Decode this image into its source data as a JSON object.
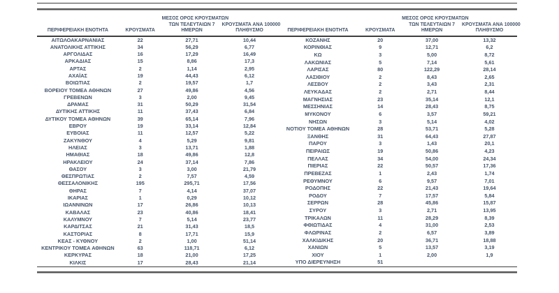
{
  "colors": {
    "text": "#44546A",
    "rule": "#3e3e3e"
  },
  "table": {
    "headers": {
      "region": "ΠΕΡΙΦΕΡΕΙΑΚΗ ΕΝΟΤΗΤΑ",
      "cases": "ΚΡΟΥΣΜΑΤΑ",
      "avg7": [
        "ΜΕΣΟΣ ΟΡΟΣ ΚΡΟΥΣΜΑΤΩΝ",
        "ΤΩΝ ΤΕΛΕΥΤΑΙΩΝ 7",
        "ΗΜΕΡΩΝ"
      ],
      "per100k": [
        "ΚΡΟΥΣΜΑΤΑ ΑΝΑ 100000",
        "ΠΛΗΘΥΣΜΟ"
      ]
    },
    "left_rows": [
      [
        "ΑΙΤΩΛΟΑΚΑΡΝΑΝΙΑΣ",
        "22",
        "27,71",
        "10,44"
      ],
      [
        "ΑΝΑΤΟΛΙΚΗΣ ΑΤΤΙΚΗΣ",
        "34",
        "56,29",
        "6,77"
      ],
      [
        "ΑΡΓΟΛΙΔΑΣ",
        "16",
        "17,29",
        "16,49"
      ],
      [
        "ΑΡΚΑΔΙΑΣ",
        "15",
        "8,86",
        "17,3"
      ],
      [
        "ΑΡΤΑΣ",
        "2",
        "1,14",
        "2,95"
      ],
      [
        "ΑΧΑΪΑΣ",
        "19",
        "44,43",
        "6,12"
      ],
      [
        "ΒΟΙΩΤΙΑΣ",
        "2",
        "19,57",
        "1,7"
      ],
      [
        "ΒΟΡΕΙΟΥ ΤΟΜΕΑ ΑΘΗΝΩΝ",
        "27",
        "49,86",
        "4,56"
      ],
      [
        "ΓΡΕΒΕΝΩΝ",
        "3",
        "2,00",
        "9,45"
      ],
      [
        "ΔΡΑΜΑΣ",
        "31",
        "50,29",
        "31,54"
      ],
      [
        "ΔΥΤΙΚΗΣ ΑΤΤΙΚΗΣ",
        "11",
        "37,43",
        "6,84"
      ],
      [
        "ΔΥΤΙΚΟΥ ΤΟΜΕΑ ΑΘΗΝΩΝ",
        "39",
        "65,14",
        "7,96"
      ],
      [
        "ΕΒΡΟΥ",
        "19",
        "33,14",
        "12,84"
      ],
      [
        "ΕΥΒΟΙΑΣ",
        "11",
        "12,57",
        "5,22"
      ],
      [
        "ΖΑΚΥΝΘΟΥ",
        "4",
        "5,29",
        "9,81"
      ],
      [
        "ΗΛΕΙΑΣ",
        "3",
        "13,71",
        "1,88"
      ],
      [
        "ΗΜΑΘΙΑΣ",
        "18",
        "49,86",
        "12,8"
      ],
      [
        "ΗΡΑΚΛΕΙΟΥ",
        "24",
        "37,14",
        "7,86"
      ],
      [
        "ΘΑΣΟΥ",
        "3",
        "3,00",
        "21,79"
      ],
      [
        "ΘΕΣΠΡΩΤΙΑΣ",
        "2",
        "7,57",
        "4,59"
      ],
      [
        "ΘΕΣΣΑΛΟΝΙΚΗΣ",
        "195",
        "295,71",
        "17,56"
      ],
      [
        "ΘΗΡΑΣ",
        "7",
        "4,14",
        "37,07"
      ],
      [
        "ΙΚΑΡΙΑΣ",
        "1",
        "0,29",
        "10,12"
      ],
      [
        "ΙΩΑΝΝΙΝΩΝ",
        "17",
        "26,86",
        "10,13"
      ],
      [
        "ΚΑΒΑΛΑΣ",
        "23",
        "40,86",
        "18,41"
      ],
      [
        "ΚΑΛΥΜΝΟΥ",
        "7",
        "5,14",
        "23,77"
      ],
      [
        "ΚΑΡΔΙΤΣΑΣ",
        "21",
        "31,43",
        "18,5"
      ],
      [
        "ΚΑΣΤΟΡΙΑΣ",
        "8",
        "17,71",
        "15,9"
      ],
      [
        "ΚΕΑΣ - ΚΥΘΝΟΥ",
        "2",
        "1,00",
        "51,14"
      ],
      [
        "ΚΕΝΤΡΙΚΟΥ ΤΟΜΕΑ ΑΘΗΝΩΝ",
        "63",
        "118,71",
        "6,12"
      ],
      [
        "ΚΕΡΚΥΡΑΣ",
        "18",
        "21,00",
        "17,25"
      ],
      [
        "ΚΙΛΚΙΣ",
        "17",
        "28,43",
        "21,14"
      ]
    ],
    "right_rows": [
      [
        "ΚΟΖΑΝΗΣ",
        "20",
        "37,00",
        "13,32"
      ],
      [
        "ΚΟΡΙΝΘΙΑΣ",
        "9",
        "12,71",
        "6,2"
      ],
      [
        "ΚΩ",
        "3",
        "5,00",
        "8,72"
      ],
      [
        "ΛΑΚΩΝΙΑΣ",
        "5",
        "7,14",
        "5,61"
      ],
      [
        "ΛΑΡΙΣΑΣ",
        "80",
        "122,29",
        "28,14"
      ],
      [
        "ΛΑΣΙΘΙΟΥ",
        "2",
        "8,43",
        "2,65"
      ],
      [
        "ΛΕΣΒΟΥ",
        "2",
        "3,43",
        "2,31"
      ],
      [
        "ΛΕΥΚΑΔΑΣ",
        "2",
        "2,71",
        "8,44"
      ],
      [
        "ΜΑΓΝΗΣΙΑΣ",
        "23",
        "35,14",
        "12,1"
      ],
      [
        "ΜΕΣΣΗΝΙΑΣ",
        "14",
        "28,43",
        "8,75"
      ],
      [
        "ΜΥΚΟΝΟΥ",
        "6",
        "3,57",
        "59,21"
      ],
      [
        "ΝΗΣΩΝ",
        "3",
        "5,14",
        "4,02"
      ],
      [
        "ΝΟΤΙΟΥ ΤΟΜΕΑ ΑΘΗΝΩΝ",
        "28",
        "53,71",
        "5,28"
      ],
      [
        "ΞΑΝΘΗΣ",
        "31",
        "64,43",
        "27,87"
      ],
      [
        "ΠΑΡΟΥ",
        "3",
        "1,43",
        "20,1"
      ],
      [
        "ΠΕΙΡΑΙΩΣ",
        "19",
        "50,86",
        "4,23"
      ],
      [
        "ΠΕΛΛΑΣ",
        "34",
        "54,00",
        "24,34"
      ],
      [
        "ΠΙΕΡΙΑΣ",
        "22",
        "50,57",
        "17,36"
      ],
      [
        "ΠΡΕΒΕΖΑΣ",
        "1",
        "2,43",
        "1,74"
      ],
      [
        "ΡΕΘΥΜΝΟΥ",
        "6",
        "9,57",
        "7,01"
      ],
      [
        "ΡΟΔΟΠΗΣ",
        "22",
        "21,43",
        "19,64"
      ],
      [
        "ΡΟΔΟΥ",
        "7",
        "17,57",
        "5,84"
      ],
      [
        "ΣΕΡΡΩΝ",
        "28",
        "45,86",
        "15,87"
      ],
      [
        "ΣΥΡΟΥ",
        "3",
        "2,71",
        "13,95"
      ],
      [
        "ΤΡΙΚΑΛΩΝ",
        "11",
        "28,29",
        "8,39"
      ],
      [
        "ΦΘΙΩΤΙΔΑΣ",
        "4",
        "31,00",
        "2,53"
      ],
      [
        "ΦΛΩΡΙΝΑΣ",
        "2",
        "6,57",
        "3,89"
      ],
      [
        "ΧΑΛΚΙΔΙΚΗΣ",
        "20",
        "36,71",
        "18,88"
      ],
      [
        "ΧΑΝΙΩΝ",
        "5",
        "13,57",
        "3,19"
      ],
      [
        "ΧΙΟΥ",
        "1",
        "2,00",
        "1,9"
      ],
      [
        "ΥΠΟ ΔΙΕΡΕΥΝΗΣΗ",
        "51",
        "",
        ""
      ]
    ]
  }
}
